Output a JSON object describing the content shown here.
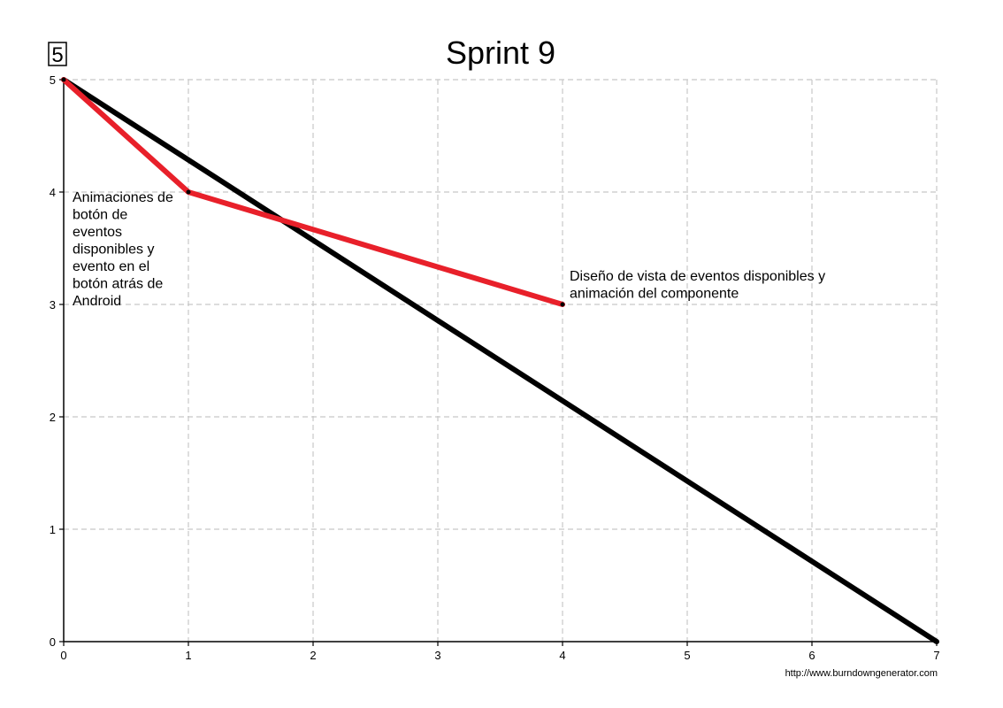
{
  "chart_data": {
    "type": "line",
    "title": "Sprint 9",
    "total_points": "5",
    "xlim": [
      0,
      7
    ],
    "ylim": [
      0,
      5
    ],
    "x_ticks": [
      "0",
      "1",
      "2",
      "3",
      "4",
      "5",
      "6",
      "7"
    ],
    "y_ticks": [
      "0",
      "1",
      "2",
      "3",
      "4",
      "5"
    ],
    "grid": true,
    "series": [
      {
        "x": [
          0,
          7
        ],
        "y": [
          5,
          0
        ],
        "color": "#000000"
      },
      {
        "x": [
          0,
          1,
          4
        ],
        "y": [
          5,
          4,
          3
        ],
        "color": "#e8202a"
      }
    ],
    "annotations": [
      {
        "x": 1,
        "y": 4,
        "lines": [
          "Animaciones de",
          "botón de",
          "eventos",
          "disponibles y",
          "evento en el",
          "botón atrás de",
          "Android"
        ]
      },
      {
        "x": 4,
        "y": 3,
        "lines": [
          "Diseño de vista de eventos disponibles y",
          "animación del componente"
        ]
      }
    ],
    "credit": "http://www.burndowngenerator.com"
  }
}
